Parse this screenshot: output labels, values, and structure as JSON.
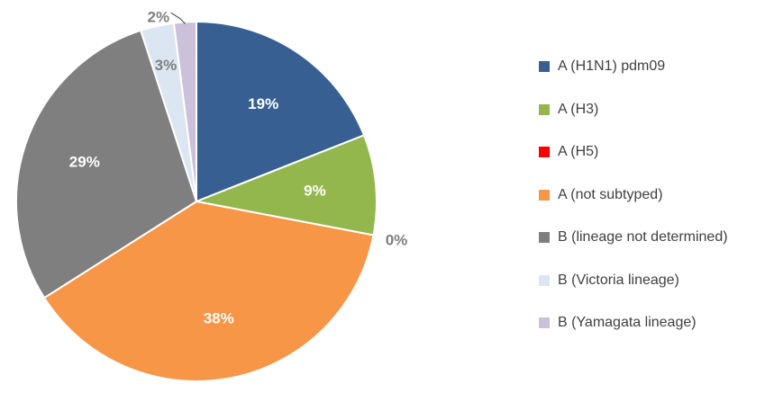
{
  "chart_data": {
    "type": "pie",
    "title": "",
    "start_angle_deg": 0,
    "direction": "clockwise",
    "legend_position": "right",
    "slices": [
      {
        "name": "A (H1N1) pdm09",
        "value": 19,
        "label": "19%",
        "color": "#375F92",
        "label_color": "#FFFFFF"
      },
      {
        "name": "A (H3)",
        "value": 9,
        "label": "9%",
        "color": "#93B74D",
        "label_color": "#FFFFFF"
      },
      {
        "name": "A (H5)",
        "value": 0,
        "label": "0%",
        "color": "#FF0000",
        "label_color": "#7F7F7F"
      },
      {
        "name": "A (not subtyped)",
        "value": 38,
        "label": "38%",
        "color": "#F79646",
        "label_color": "#FFFFFF"
      },
      {
        "name": "B (lineage not determined)",
        "value": 29,
        "label": "29%",
        "color": "#7F7F7F",
        "label_color": "#FFFFFF"
      },
      {
        "name": "B (Victoria lineage)",
        "value": 3,
        "label": "3%",
        "color": "#DCE6F2",
        "label_color": "#7F7F7F"
      },
      {
        "name": "B (Yamagata lineage)",
        "value": 2,
        "label": "2%",
        "color": "#CCC1DA",
        "label_color": "#7F7F7F"
      }
    ]
  }
}
